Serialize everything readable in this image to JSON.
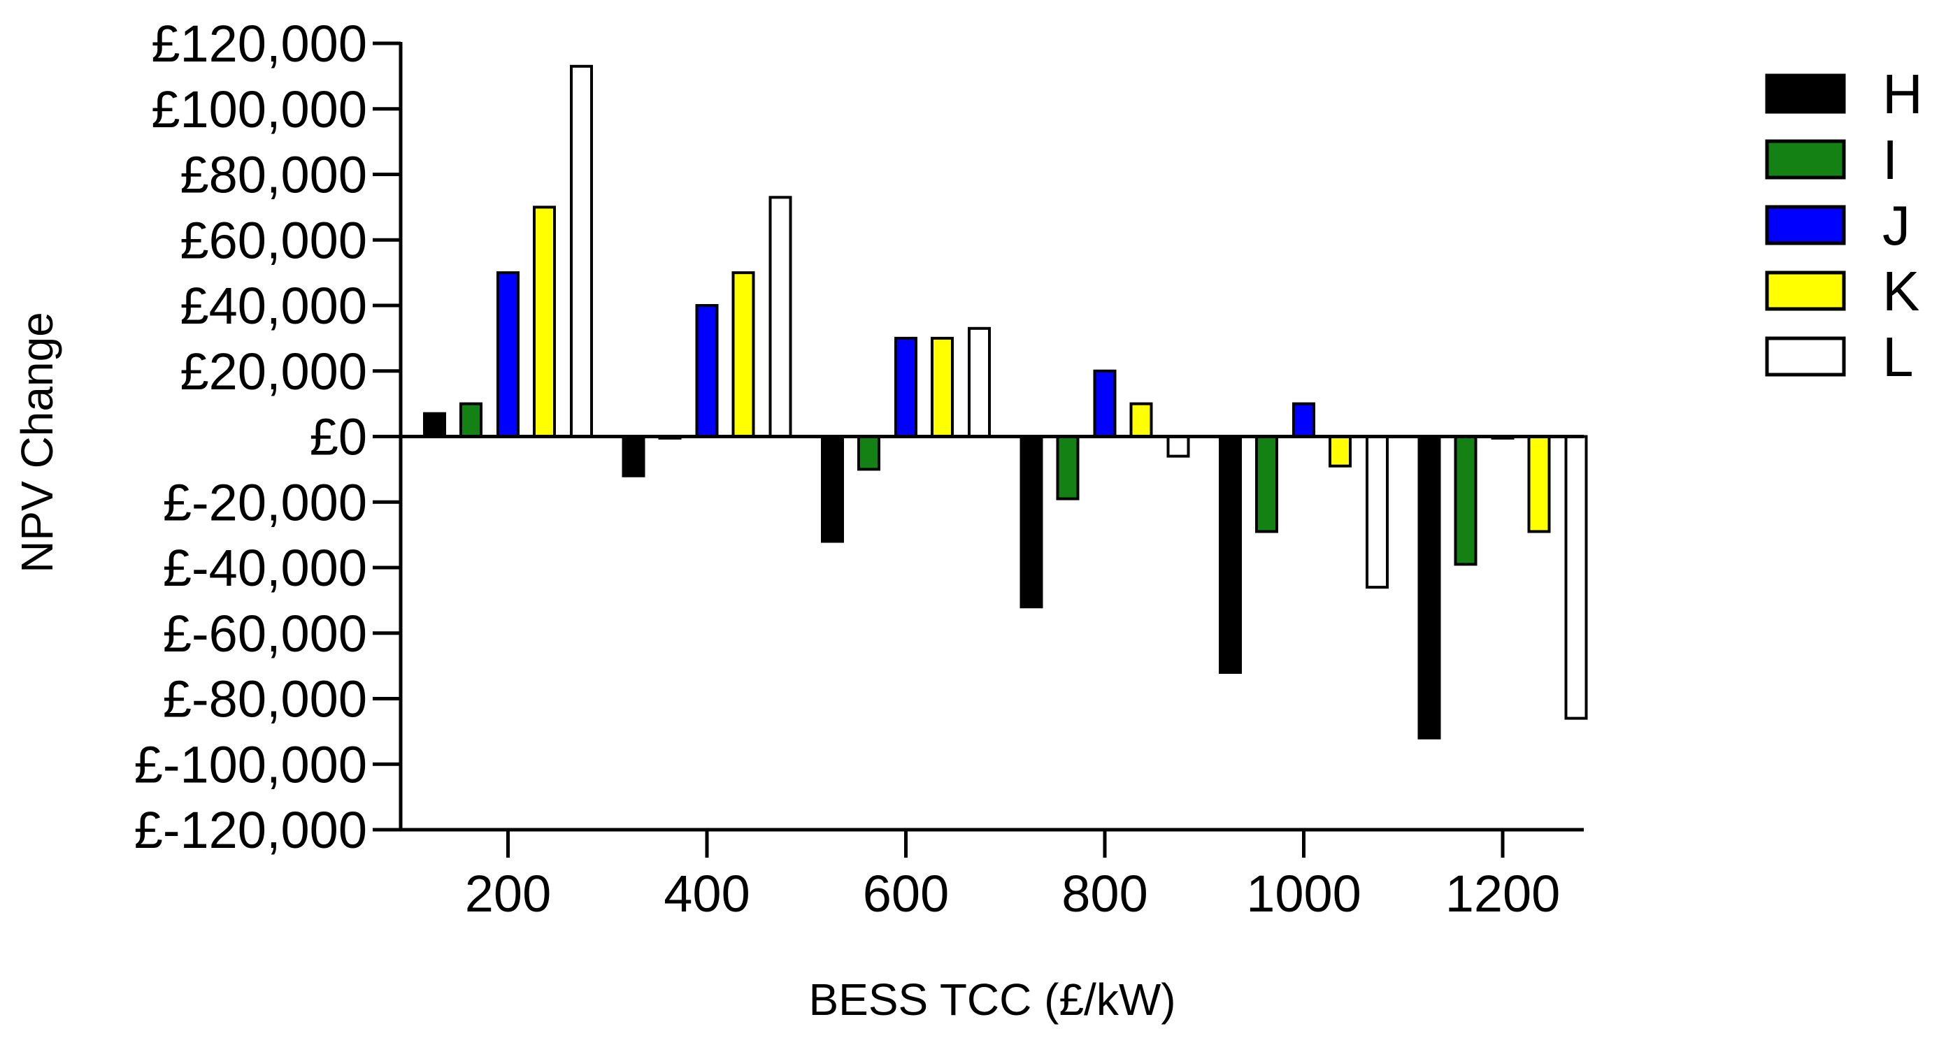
{
  "chart_data": {
    "type": "bar",
    "title": "",
    "xlabel": "BESS TCC (£/kW)",
    "ylabel": "NPV Change",
    "categories": [
      "200",
      "400",
      "600",
      "800",
      "1000",
      "1200"
    ],
    "ylim": [
      -120000,
      120000
    ],
    "ytick_values": [
      120000,
      100000,
      80000,
      60000,
      40000,
      20000,
      0,
      -20000,
      -40000,
      -60000,
      -80000,
      -100000,
      -120000
    ],
    "ytick_labels": [
      "£120,000",
      "£100,000",
      "£80,000",
      "£60,000",
      "£40,000",
      "£20,000",
      "£0",
      "£-20,000",
      "£-40,000",
      "£-60,000",
      "£-80,000",
      "£-100,000",
      "£-120,000"
    ],
    "grid": false,
    "legend_position": "right",
    "series": [
      {
        "name": "H",
        "color": "#000000",
        "values": [
          7000,
          -12000,
          -32000,
          -52000,
          -72000,
          -92000
        ]
      },
      {
        "name": "I",
        "color": "#138113",
        "values": [
          10000,
          -500,
          -10000,
          -19000,
          -29000,
          -39000
        ]
      },
      {
        "name": "J",
        "color": "#0000ff",
        "values": [
          50000,
          40000,
          30000,
          20000,
          10000,
          -500
        ]
      },
      {
        "name": "K",
        "color": "#ffff00",
        "values": [
          70000,
          50000,
          30000,
          10000,
          -9000,
          -29000
        ]
      },
      {
        "name": "L",
        "color": "#ffffff",
        "values": [
          113000,
          73000,
          33000,
          -6000,
          -46000,
          -86000
        ]
      }
    ]
  }
}
